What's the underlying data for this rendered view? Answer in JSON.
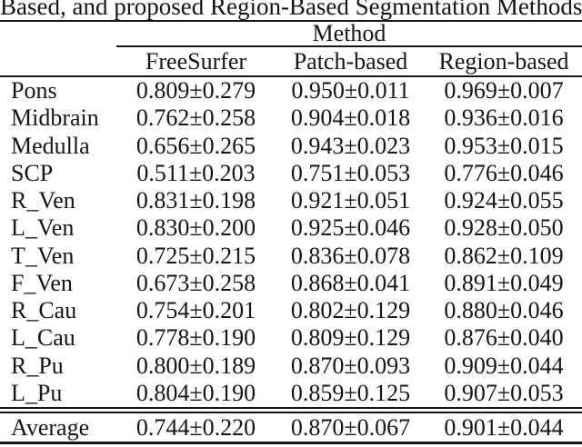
{
  "caption": "Based, and proposed Region-Based Segmentation Methods.",
  "table": {
    "group_header": "Method",
    "columns": [
      "FreeSurfer",
      "Patch-based",
      "Region-based"
    ],
    "rows": [
      {
        "label": "Pons",
        "values": [
          "0.809±0.279",
          "0.950±0.011",
          "0.969±0.007"
        ]
      },
      {
        "label": "Midbrain",
        "values": [
          "0.762±0.258",
          "0.904±0.018",
          "0.936±0.016"
        ]
      },
      {
        "label": "Medulla",
        "values": [
          "0.656±0.265",
          "0.943±0.023",
          "0.953±0.015"
        ]
      },
      {
        "label": "SCP",
        "values": [
          "0.511±0.203",
          "0.751±0.053",
          "0.776±0.046"
        ]
      },
      {
        "label": "R_Ven",
        "values": [
          "0.831±0.198",
          "0.921±0.051",
          "0.924±0.055"
        ]
      },
      {
        "label": "L_Ven",
        "values": [
          "0.830±0.200",
          "0.925±0.046",
          "0.928±0.050"
        ]
      },
      {
        "label": "T_Ven",
        "values": [
          "0.725±0.215",
          "0.836±0.078",
          "0.862±0.109"
        ]
      },
      {
        "label": "F_Ven",
        "values": [
          "0.673±0.258",
          "0.868±0.041",
          "0.891±0.049"
        ]
      },
      {
        "label": "R_Cau",
        "values": [
          "0.754±0.201",
          "0.802±0.129",
          "0.880±0.046"
        ]
      },
      {
        "label": "L_Cau",
        "values": [
          "0.778±0.190",
          "0.809±0.129",
          "0.876±0.040"
        ]
      },
      {
        "label": "R_Pu",
        "values": [
          "0.800±0.189",
          "0.870±0.093",
          "0.909±0.044"
        ]
      },
      {
        "label": "L_Pu",
        "values": [
          "0.804±0.190",
          "0.859±0.125",
          "0.907±0.053"
        ]
      }
    ],
    "summary_row": {
      "label": "Average",
      "values": [
        "0.744±0.220",
        "0.870±0.067",
        "0.901±0.044"
      ]
    }
  },
  "colors": {
    "text": "#151515",
    "rule": "#151515",
    "background": "#ffffff"
  }
}
